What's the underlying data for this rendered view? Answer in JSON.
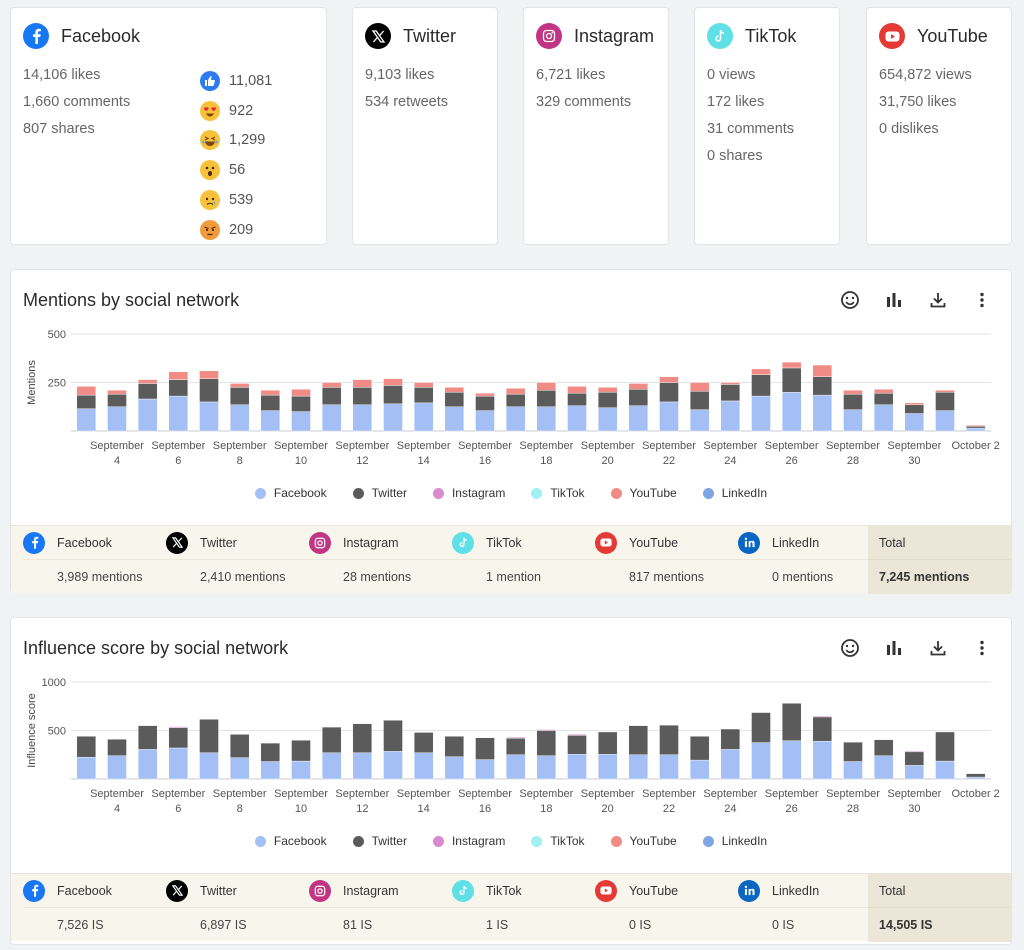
{
  "networks": [
    {
      "key": "facebook",
      "title": "Facebook",
      "icon": "facebook-icon",
      "color": "#1877f2",
      "stats": [
        "14,106 likes",
        "1,660 comments",
        "807 shares"
      ]
    },
    {
      "key": "twitter",
      "title": "Twitter",
      "icon": "x-twitter-icon",
      "color": "#000000",
      "stats": [
        "9,103 likes",
        "534 retweets"
      ]
    },
    {
      "key": "instagram",
      "title": "Instagram",
      "icon": "instagram-icon",
      "color": "#c13584",
      "stats": [
        "6,721 likes",
        "329 comments"
      ]
    },
    {
      "key": "tiktok",
      "title": "TikTok",
      "icon": "tiktok-icon",
      "color": "#5ee0e6",
      "stats": [
        "0 views",
        "172 likes",
        "31 comments",
        "0 shares"
      ]
    },
    {
      "key": "youtube",
      "title": "YouTube",
      "icon": "youtube-icon",
      "color": "#e53935",
      "stats": [
        "654,872 views",
        "31,750 likes",
        "0 dislikes"
      ]
    }
  ],
  "facebook_reactions": [
    {
      "icon": "like-reaction-icon",
      "value": "11,081"
    },
    {
      "icon": "love-reaction-icon",
      "value": "922"
    },
    {
      "icon": "haha-reaction-icon",
      "value": "1,299"
    },
    {
      "icon": "wow-reaction-icon",
      "value": "56"
    },
    {
      "icon": "sad-reaction-icon",
      "value": "539"
    },
    {
      "icon": "angry-reaction-icon",
      "value": "209"
    }
  ],
  "colors": {
    "facebook": "#a3bff5",
    "twitter": "#5b5b5b",
    "instagram": "#d98ad0",
    "tiktok": "#9ff1f2",
    "youtube": "#f08b86",
    "linkedin": "#7da6e3"
  },
  "legend": [
    {
      "key": "facebook",
      "label": "Facebook"
    },
    {
      "key": "twitter",
      "label": "Twitter"
    },
    {
      "key": "instagram",
      "label": "Instagram"
    },
    {
      "key": "tiktok",
      "label": "TikTok"
    },
    {
      "key": "youtube",
      "label": "YouTube"
    },
    {
      "key": "linkedin",
      "label": "LinkedIn"
    }
  ],
  "mentions_panel": {
    "title": "Mentions by social network",
    "summary": [
      {
        "label": "Facebook",
        "icon": "facebook-icon",
        "color": "#1877f2",
        "value": "3,989 mentions"
      },
      {
        "label": "Twitter",
        "icon": "x-twitter-icon",
        "color": "#000000",
        "value": "2,410 mentions"
      },
      {
        "label": "Instagram",
        "icon": "instagram-icon",
        "color": "#c13584",
        "value": "28 mentions"
      },
      {
        "label": "TikTok",
        "icon": "tiktok-icon",
        "color": "#5ee0e6",
        "value": "1 mention"
      },
      {
        "label": "YouTube",
        "icon": "youtube-icon",
        "color": "#e53935",
        "value": "817 mentions"
      },
      {
        "label": "LinkedIn",
        "icon": "linkedin-icon",
        "color": "#0a66c2",
        "value": "0 mentions"
      }
    ],
    "total_label": "Total",
    "total_value": "7,245 mentions"
  },
  "influence_panel": {
    "title": "Influence score by social network",
    "summary": [
      {
        "label": "Facebook",
        "icon": "facebook-icon",
        "color": "#1877f2",
        "value": "7,526 IS"
      },
      {
        "label": "Twitter",
        "icon": "x-twitter-icon",
        "color": "#000000",
        "value": "6,897 IS"
      },
      {
        "label": "Instagram",
        "icon": "instagram-icon",
        "color": "#c13584",
        "value": "81 IS"
      },
      {
        "label": "TikTok",
        "icon": "tiktok-icon",
        "color": "#5ee0e6",
        "value": "1 IS"
      },
      {
        "label": "YouTube",
        "icon": "youtube-icon",
        "color": "#e53935",
        "value": "0 IS"
      },
      {
        "label": "LinkedIn",
        "icon": "linkedin-icon",
        "color": "#0a66c2",
        "value": "0 IS"
      }
    ],
    "total_label": "Total",
    "total_value": "14,505 IS"
  },
  "chart_data": [
    {
      "type": "bar",
      "stacked": true,
      "ylabel": "Mentions",
      "ylim": [
        0,
        500
      ],
      "yticks": [
        500,
        250
      ],
      "categories": [
        "September 3",
        "September 4",
        "September 5",
        "September 6",
        "September 7",
        "September 8",
        "September 9",
        "September 10",
        "September 11",
        "September 12",
        "September 13",
        "September 14",
        "September 15",
        "September 16",
        "September 17",
        "September 18",
        "September 19",
        "September 20",
        "September 21",
        "September 22",
        "September 23",
        "September 24",
        "September 25",
        "September 26",
        "September 27",
        "September 28",
        "September 29",
        "September 30",
        "October 1",
        "October 2"
      ],
      "tick_labels": [
        {
          "index": 1,
          "line1": "September",
          "line2": "4"
        },
        {
          "index": 3,
          "line1": "September",
          "line2": "6"
        },
        {
          "index": 5,
          "line1": "September",
          "line2": "8"
        },
        {
          "index": 7,
          "line1": "September",
          "line2": "10"
        },
        {
          "index": 9,
          "line1": "September",
          "line2": "12"
        },
        {
          "index": 11,
          "line1": "September",
          "line2": "14"
        },
        {
          "index": 13,
          "line1": "September",
          "line2": "16"
        },
        {
          "index": 15,
          "line1": "September",
          "line2": "18"
        },
        {
          "index": 17,
          "line1": "September",
          "line2": "20"
        },
        {
          "index": 19,
          "line1": "September",
          "line2": "22"
        },
        {
          "index": 21,
          "line1": "September",
          "line2": "24"
        },
        {
          "index": 23,
          "line1": "September",
          "line2": "26"
        },
        {
          "index": 25,
          "line1": "September",
          "line2": "28"
        },
        {
          "index": 27,
          "line1": "September",
          "line2": "30"
        },
        {
          "index": 29,
          "line1": "October 2",
          "line2": ""
        }
      ],
      "series": [
        {
          "name": "Facebook",
          "key": "facebook",
          "values": [
            115,
            125,
            165,
            180,
            150,
            135,
            105,
            100,
            135,
            135,
            140,
            145,
            125,
            105,
            125,
            125,
            130,
            120,
            130,
            150,
            110,
            155,
            180,
            200,
            185,
            110,
            135,
            90,
            105,
            15
          ]
        },
        {
          "name": "Twitter",
          "key": "twitter",
          "values": [
            70,
            65,
            80,
            85,
            120,
            90,
            80,
            80,
            90,
            90,
            95,
            80,
            75,
            75,
            65,
            85,
            65,
            80,
            85,
            100,
            95,
            85,
            110,
            125,
            95,
            80,
            60,
            45,
            95,
            10
          ]
        },
        {
          "name": "Instagram",
          "key": "instagram",
          "values": [
            0,
            0,
            0,
            0,
            0,
            0,
            0,
            0,
            0,
            0,
            0,
            0,
            0,
            0,
            0,
            0,
            0,
            0,
            0,
            0,
            0,
            0,
            0,
            0,
            0,
            0,
            0,
            0,
            0,
            0
          ]
        },
        {
          "name": "TikTok",
          "key": "tiktok",
          "values": [
            0,
            0,
            0,
            0,
            0,
            0,
            0,
            0,
            0,
            0,
            0,
            0,
            0,
            0,
            0,
            0,
            0,
            0,
            0,
            0,
            0,
            0,
            0,
            0,
            0,
            0,
            0,
            0,
            0,
            0
          ]
        },
        {
          "name": "YouTube",
          "key": "youtube",
          "values": [
            45,
            20,
            20,
            40,
            40,
            20,
            25,
            35,
            25,
            40,
            35,
            25,
            25,
            15,
            30,
            40,
            35,
            25,
            30,
            30,
            45,
            10,
            30,
            30,
            60,
            20,
            20,
            10,
            10,
            5
          ]
        },
        {
          "name": "LinkedIn",
          "key": "linkedin",
          "values": [
            0,
            0,
            0,
            0,
            0,
            0,
            0,
            0,
            0,
            0,
            0,
            0,
            0,
            0,
            0,
            0,
            0,
            0,
            0,
            0,
            0,
            0,
            0,
            0,
            0,
            0,
            0,
            0,
            0,
            0
          ]
        }
      ]
    },
    {
      "type": "bar",
      "stacked": true,
      "ylabel": "Influence score",
      "ylim": [
        0,
        1000
      ],
      "yticks": [
        1000,
        500
      ],
      "categories": [
        "September 3",
        "September 4",
        "September 5",
        "September 6",
        "September 7",
        "September 8",
        "September 9",
        "September 10",
        "September 11",
        "September 12",
        "September 13",
        "September 14",
        "September 15",
        "September 16",
        "September 17",
        "September 18",
        "September 19",
        "September 20",
        "September 21",
        "September 22",
        "September 23",
        "September 24",
        "September 25",
        "September 26",
        "September 27",
        "September 28",
        "September 29",
        "September 30",
        "October 1",
        "October 2"
      ],
      "tick_labels": [
        {
          "index": 1,
          "line1": "September",
          "line2": "4"
        },
        {
          "index": 3,
          "line1": "September",
          "line2": "6"
        },
        {
          "index": 5,
          "line1": "September",
          "line2": "8"
        },
        {
          "index": 7,
          "line1": "September",
          "line2": "10"
        },
        {
          "index": 9,
          "line1": "September",
          "line2": "12"
        },
        {
          "index": 11,
          "line1": "September",
          "line2": "14"
        },
        {
          "index": 13,
          "line1": "September",
          "line2": "16"
        },
        {
          "index": 15,
          "line1": "September",
          "line2": "18"
        },
        {
          "index": 17,
          "line1": "September",
          "line2": "20"
        },
        {
          "index": 19,
          "line1": "September",
          "line2": "22"
        },
        {
          "index": 21,
          "line1": "September",
          "line2": "24"
        },
        {
          "index": 23,
          "line1": "September",
          "line2": "26"
        },
        {
          "index": 25,
          "line1": "September",
          "line2": "28"
        },
        {
          "index": 27,
          "line1": "September",
          "line2": "30"
        },
        {
          "index": 29,
          "line1": "October 2",
          "line2": ""
        }
      ],
      "series": [
        {
          "name": "Facebook",
          "key": "facebook",
          "values": [
            225,
            240,
            305,
            320,
            270,
            220,
            180,
            185,
            270,
            270,
            285,
            270,
            230,
            200,
            250,
            240,
            255,
            255,
            250,
            250,
            195,
            305,
            375,
            395,
            390,
            180,
            240,
            140,
            185,
            20
          ]
        },
        {
          "name": "Twitter",
          "key": "twitter",
          "values": [
            215,
            170,
            245,
            210,
            345,
            240,
            190,
            215,
            265,
            300,
            320,
            210,
            210,
            225,
            170,
            260,
            195,
            230,
            300,
            305,
            245,
            210,
            310,
            385,
            250,
            200,
            165,
            140,
            300,
            35
          ]
        },
        {
          "name": "Instagram",
          "key": "instagram",
          "values": [
            0,
            0,
            0,
            10,
            0,
            0,
            0,
            0,
            0,
            0,
            0,
            0,
            0,
            0,
            10,
            10,
            10,
            0,
            0,
            0,
            0,
            0,
            0,
            0,
            10,
            0,
            0,
            10,
            0,
            0
          ]
        },
        {
          "name": "TikTok",
          "key": "tiktok",
          "values": [
            0,
            0,
            0,
            0,
            0,
            0,
            0,
            0,
            0,
            0,
            0,
            0,
            0,
            0,
            0,
            0,
            0,
            0,
            0,
            0,
            0,
            0,
            0,
            0,
            0,
            0,
            0,
            0,
            0,
            0
          ]
        },
        {
          "name": "YouTube",
          "key": "youtube",
          "values": [
            0,
            0,
            0,
            0,
            0,
            0,
            0,
            0,
            0,
            0,
            0,
            0,
            0,
            0,
            0,
            0,
            0,
            0,
            0,
            0,
            0,
            0,
            0,
            0,
            0,
            0,
            0,
            0,
            0,
            0
          ]
        },
        {
          "name": "LinkedIn",
          "key": "linkedin",
          "values": [
            0,
            0,
            0,
            0,
            0,
            0,
            0,
            0,
            0,
            0,
            0,
            0,
            0,
            0,
            0,
            0,
            0,
            0,
            0,
            0,
            0,
            0,
            0,
            0,
            0,
            0,
            0,
            0,
            0,
            0
          ]
        }
      ]
    }
  ]
}
